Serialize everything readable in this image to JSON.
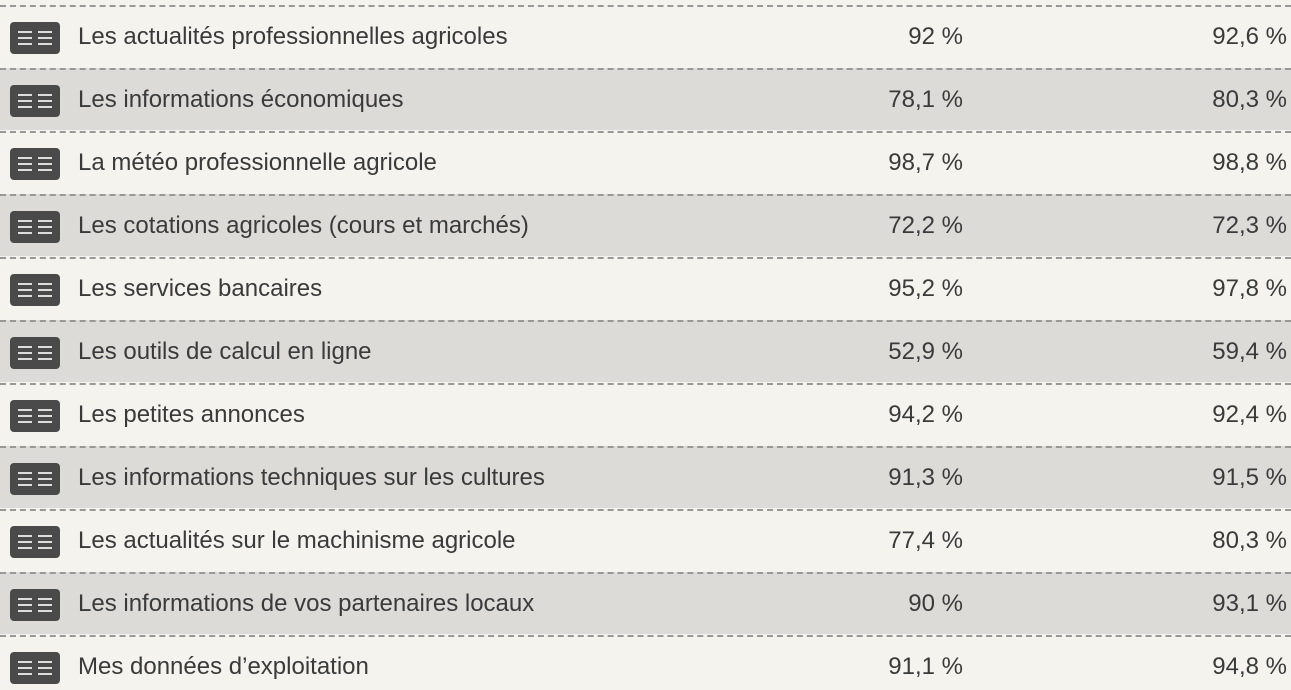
{
  "table": {
    "rows": [
      [
        "Les actualités professionnelles agricoles",
        "92 %",
        "92,6 %"
      ],
      [
        "Les informations économiques",
        "78,1 %",
        "80,3 %"
      ],
      [
        "La météo professionnelle agricole",
        "98,7 %",
        "98,8 %"
      ],
      [
        "Les cotations agricoles (cours et marchés)",
        "72,2 %",
        "72,3 %"
      ],
      [
        "Les services bancaires",
        "95,2 %",
        "97,8 %"
      ],
      [
        "Les outils de calcul en ligne",
        "52,9 %",
        "59,4 %"
      ],
      [
        "Les petites annonces",
        "94,2 %",
        "92,4 %"
      ],
      [
        "Les informations techniques sur les cultures",
        "91,3 %",
        "91,5 %"
      ],
      [
        "Les actualités sur le machinisme agricole",
        "77,4 %",
        "80,3 %"
      ],
      [
        "Les informations de vos partenaires locaux",
        "90 %",
        "93,1 %"
      ],
      [
        "Mes données d’exploitation",
        "91,1 %",
        "94,8 %"
      ]
    ]
  }
}
